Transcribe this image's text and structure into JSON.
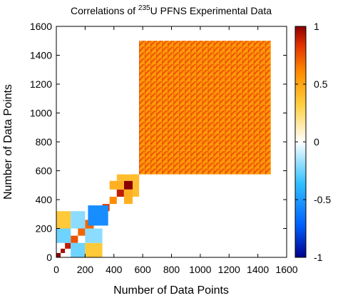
{
  "chart_data": {
    "type": "heatmap",
    "title": {
      "prefix": "Correlations of ",
      "superscript": "235",
      "suffix": "U PFNS Experimental Data"
    },
    "xlabel": "Number of Data Points",
    "ylabel": "Number of Data Points",
    "xlim": [
      0,
      1600
    ],
    "ylim": [
      0,
      1600
    ],
    "x_ticks": [
      0,
      200,
      400,
      600,
      800,
      1000,
      1200,
      1400,
      1600
    ],
    "y_ticks": [
      0,
      200,
      400,
      600,
      800,
      1000,
      1200,
      1400,
      1600
    ],
    "colorbar": {
      "range": [
        -1,
        1
      ],
      "ticks": [
        1,
        0.5,
        0,
        -0.5,
        -1
      ],
      "colors": [
        "#00008b",
        "#0060ff",
        "#30c0ff",
        "#ffffff",
        "#ffd040",
        "#ff8c00",
        "#e03000",
        "#8b0000"
      ]
    },
    "blocks": [
      {
        "x": [
          0,
          30
        ],
        "y": [
          0,
          30
        ],
        "value": 1.0
      },
      {
        "x": [
          30,
          60
        ],
        "y": [
          30,
          60
        ],
        "value": 0.95
      },
      {
        "x": [
          60,
          100
        ],
        "y": [
          60,
          100
        ],
        "value": 0.9
      },
      {
        "x": [
          100,
          150
        ],
        "y": [
          100,
          150
        ],
        "value": 0.75
      },
      {
        "x": [
          150,
          200
        ],
        "y": [
          150,
          200
        ],
        "value": 0.7
      },
      {
        "x": [
          200,
          260
        ],
        "y": [
          200,
          260
        ],
        "value": 0.7
      },
      {
        "x": [
          260,
          320
        ],
        "y": [
          260,
          320
        ],
        "value": 0.75
      },
      {
        "x": [
          320,
          370
        ],
        "y": [
          320,
          370
        ],
        "value": 0.8
      },
      {
        "x": [
          370,
          420
        ],
        "y": [
          370,
          420
        ],
        "value": 0.6
      },
      {
        "x": [
          420,
          470
        ],
        "y": [
          420,
          470
        ],
        "value": 0.9
      },
      {
        "x": [
          470,
          530
        ],
        "y": [
          470,
          530
        ],
        "value": 1.0
      },
      {
        "x": [
          530,
          575
        ],
        "y": [
          530,
          575
        ],
        "value": 0.8
      },
      {
        "x": [
          0,
          100
        ],
        "y": [
          100,
          200
        ],
        "value": -0.25
      },
      {
        "x": [
          100,
          200
        ],
        "y": [
          0,
          100
        ],
        "value": -0.25
      },
      {
        "x": [
          0,
          100
        ],
        "y": [
          200,
          320
        ],
        "value": 0.35
      },
      {
        "x": [
          200,
          320
        ],
        "y": [
          0,
          100
        ],
        "value": 0.35
      },
      {
        "x": [
          100,
          200
        ],
        "y": [
          200,
          320
        ],
        "value": -0.2
      },
      {
        "x": [
          200,
          320
        ],
        "y": [
          100,
          200
        ],
        "value": -0.2
      },
      {
        "x": [
          220,
          360
        ],
        "y": [
          220,
          360
        ],
        "value": -0.55
      },
      {
        "x": [
          370,
          470
        ],
        "y": [
          470,
          530
        ],
        "value": 0.45
      },
      {
        "x": [
          470,
          530
        ],
        "y": [
          370,
          470
        ],
        "value": 0.45
      },
      {
        "x": [
          420,
          575
        ],
        "y": [
          530,
          575
        ],
        "value": 0.4
      },
      {
        "x": [
          530,
          575
        ],
        "y": [
          420,
          530
        ],
        "value": 0.4
      }
    ],
    "large_block": {
      "x": [
        575,
        1490
      ],
      "y": [
        575,
        1500
      ],
      "grid_count": 23,
      "base_value": 0.55,
      "diagonal_value": 0.75
    }
  }
}
